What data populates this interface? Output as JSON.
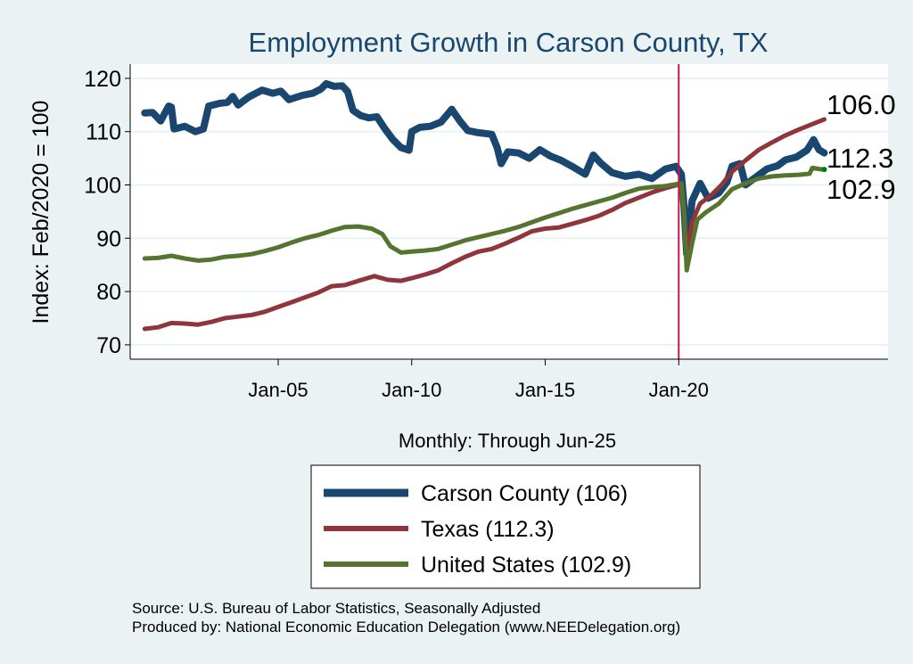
{
  "chart_data": {
    "type": "line",
    "title": "Employment Growth in Carson  County, TX",
    "xlabel": "Monthly: Through Jun-25",
    "ylabel": "Index: Feb/2020 = 100",
    "ylim": [
      68,
      123
    ],
    "xlim": [
      1999.5,
      2028.0
    ],
    "yticks": [
      70,
      80,
      90,
      100,
      110,
      120
    ],
    "xticks": [
      {
        "value": 2005,
        "label": "Jan-05"
      },
      {
        "value": 2010,
        "label": "Jan-10"
      },
      {
        "value": 2015,
        "label": "Jan-15"
      },
      {
        "value": 2020,
        "label": "Jan-20"
      }
    ],
    "grid": true,
    "reference_line_x": 2020.0,
    "legend_placement": "bottom",
    "series": [
      {
        "name": "Carson  County (106)",
        "color": "#1a476f",
        "end_label": "106.0",
        "points": [
          [
            2000,
            113.5
          ],
          [
            2000.3,
            113.6
          ],
          [
            2000.6,
            112
          ],
          [
            2000.9,
            114.8
          ],
          [
            2001.0,
            114.6
          ],
          [
            2001.1,
            110.5
          ],
          [
            2001.5,
            111
          ],
          [
            2001.9,
            110
          ],
          [
            2002.2,
            110.5
          ],
          [
            2002.4,
            114.8
          ],
          [
            2002.8,
            115.3
          ],
          [
            2003.1,
            115.5
          ],
          [
            2003.3,
            116.6
          ],
          [
            2003.5,
            115
          ],
          [
            2003.9,
            116.5
          ],
          [
            2004.4,
            117.8
          ],
          [
            2004.8,
            117.2
          ],
          [
            2005.1,
            117.6
          ],
          [
            2005.4,
            116
          ],
          [
            2005.9,
            116.8
          ],
          [
            2006.3,
            117.2
          ],
          [
            2006.6,
            118
          ],
          [
            2006.8,
            119
          ],
          [
            2007.1,
            118.5
          ],
          [
            2007.4,
            118.6
          ],
          [
            2007.6,
            117.5
          ],
          [
            2007.8,
            114
          ],
          [
            2008.1,
            113
          ],
          [
            2008.4,
            112.6
          ],
          [
            2008.7,
            112.8
          ],
          [
            2009.0,
            110.5
          ],
          [
            2009.3,
            108.5
          ],
          [
            2009.6,
            107
          ],
          [
            2009.9,
            106.5
          ],
          [
            2010.0,
            110
          ],
          [
            2010.3,
            110.8
          ],
          [
            2010.7,
            111
          ],
          [
            2011.1,
            111.8
          ],
          [
            2011.5,
            114.2
          ],
          [
            2011.8,
            112
          ],
          [
            2012.1,
            110.2
          ],
          [
            2012.5,
            109.8
          ],
          [
            2013.0,
            109.5
          ],
          [
            2013.2,
            107
          ],
          [
            2013.35,
            104
          ],
          [
            2013.6,
            106.2
          ],
          [
            2014.0,
            106
          ],
          [
            2014.4,
            105
          ],
          [
            2014.8,
            106.6
          ],
          [
            2015.2,
            105.4
          ],
          [
            2015.6,
            104.6
          ],
          [
            2016.0,
            103.5
          ],
          [
            2016.5,
            102
          ],
          [
            2016.8,
            105.6
          ],
          [
            2017.1,
            104
          ],
          [
            2017.5,
            102.3
          ],
          [
            2018.0,
            101.6
          ],
          [
            2018.5,
            102
          ],
          [
            2019.0,
            101.2
          ],
          [
            2019.5,
            103
          ],
          [
            2019.9,
            103.5
          ],
          [
            2020.1,
            102
          ],
          [
            2020.2,
            96
          ],
          [
            2020.3,
            87
          ],
          [
            2020.5,
            97
          ],
          [
            2020.8,
            100.3
          ],
          [
            2021.1,
            97.5
          ],
          [
            2021.5,
            98.5
          ],
          [
            2021.8,
            100.5
          ],
          [
            2022.0,
            103.5
          ],
          [
            2022.3,
            104
          ],
          [
            2022.5,
            100
          ],
          [
            2022.9,
            101.5
          ],
          [
            2023.3,
            103
          ],
          [
            2023.7,
            103.6
          ],
          [
            2024.0,
            104.7
          ],
          [
            2024.4,
            105.2
          ],
          [
            2024.8,
            106.5
          ],
          [
            2025.05,
            108.5
          ],
          [
            2025.25,
            106.6
          ],
          [
            2025.45,
            106
          ]
        ]
      },
      {
        "name": "Texas (112.3)",
        "color": "#90353b",
        "end_label": "112.3",
        "points": [
          [
            2000,
            73
          ],
          [
            2000.5,
            73.3
          ],
          [
            2001,
            74.1
          ],
          [
            2001.5,
            74
          ],
          [
            2002,
            73.8
          ],
          [
            2002.5,
            74.3
          ],
          [
            2003,
            75
          ],
          [
            2003.5,
            75.3
          ],
          [
            2004,
            75.6
          ],
          [
            2004.5,
            76.2
          ],
          [
            2005,
            77.1
          ],
          [
            2005.5,
            78
          ],
          [
            2006,
            78.9
          ],
          [
            2006.5,
            79.8
          ],
          [
            2007,
            81
          ],
          [
            2007.5,
            81.2
          ],
          [
            2008,
            82
          ],
          [
            2008.6,
            82.9
          ],
          [
            2009.1,
            82.2
          ],
          [
            2009.6,
            82
          ],
          [
            2010,
            82.5
          ],
          [
            2010.5,
            83.2
          ],
          [
            2011,
            84
          ],
          [
            2011.5,
            85.3
          ],
          [
            2012,
            86.5
          ],
          [
            2012.5,
            87.5
          ],
          [
            2013,
            88
          ],
          [
            2013.5,
            89
          ],
          [
            2014,
            90.1
          ],
          [
            2014.5,
            91.3
          ],
          [
            2015,
            91.8
          ],
          [
            2015.5,
            92
          ],
          [
            2016,
            92.7
          ],
          [
            2016.5,
            93.4
          ],
          [
            2017,
            94.2
          ],
          [
            2017.5,
            95.3
          ],
          [
            2018,
            96.6
          ],
          [
            2018.5,
            97.6
          ],
          [
            2019,
            98.6
          ],
          [
            2019.5,
            99.4
          ],
          [
            2020.1,
            100.2
          ],
          [
            2020.2,
            95
          ],
          [
            2020.3,
            87
          ],
          [
            2020.5,
            93
          ],
          [
            2020.8,
            96.5
          ],
          [
            2021.2,
            98
          ],
          [
            2021.6,
            100
          ],
          [
            2022.0,
            102.5
          ],
          [
            2022.5,
            104.6
          ],
          [
            2023.0,
            106.6
          ],
          [
            2023.5,
            108
          ],
          [
            2024.0,
            109.3
          ],
          [
            2024.5,
            110.4
          ],
          [
            2025.0,
            111.4
          ],
          [
            2025.45,
            112.3
          ]
        ]
      },
      {
        "name": "United States (102.9)",
        "color": "#55752f",
        "end_label": "102.9",
        "points": [
          [
            2000,
            86.2
          ],
          [
            2000.5,
            86.3
          ],
          [
            2001,
            86.7
          ],
          [
            2001.5,
            86.2
          ],
          [
            2002,
            85.8
          ],
          [
            2002.5,
            86
          ],
          [
            2003,
            86.5
          ],
          [
            2003.5,
            86.7
          ],
          [
            2004,
            87
          ],
          [
            2004.5,
            87.6
          ],
          [
            2005,
            88.3
          ],
          [
            2005.5,
            89.2
          ],
          [
            2006,
            90
          ],
          [
            2006.5,
            90.6
          ],
          [
            2007,
            91.4
          ],
          [
            2007.5,
            92.1
          ],
          [
            2008,
            92.2
          ],
          [
            2008.5,
            91.8
          ],
          [
            2008.9,
            90.8
          ],
          [
            2009.2,
            88.5
          ],
          [
            2009.6,
            87.3
          ],
          [
            2010,
            87.5
          ],
          [
            2010.5,
            87.7
          ],
          [
            2011,
            88
          ],
          [
            2011.5,
            88.8
          ],
          [
            2012,
            89.6
          ],
          [
            2012.5,
            90.2
          ],
          [
            2013,
            90.8
          ],
          [
            2013.5,
            91.4
          ],
          [
            2014,
            92.1
          ],
          [
            2014.5,
            93
          ],
          [
            2015,
            93.9
          ],
          [
            2015.5,
            94.7
          ],
          [
            2016,
            95.5
          ],
          [
            2016.5,
            96.2
          ],
          [
            2017,
            96.9
          ],
          [
            2017.5,
            97.6
          ],
          [
            2018,
            98.5
          ],
          [
            2018.5,
            99.3
          ],
          [
            2019,
            99.6
          ],
          [
            2019.5,
            99.8
          ],
          [
            2020.1,
            100.3
          ],
          [
            2020.2,
            95
          ],
          [
            2020.3,
            84
          ],
          [
            2020.5,
            89
          ],
          [
            2020.7,
            93.5
          ],
          [
            2021.0,
            94.8
          ],
          [
            2021.5,
            96.5
          ],
          [
            2022.0,
            99.2
          ],
          [
            2022.5,
            100.3
          ],
          [
            2023.0,
            101.2
          ],
          [
            2023.5,
            101.6
          ],
          [
            2024.0,
            101.8
          ],
          [
            2024.5,
            101.9
          ],
          [
            2024.9,
            102.1
          ],
          [
            2025.0,
            103.2
          ],
          [
            2025.25,
            103
          ],
          [
            2025.45,
            102.9
          ]
        ]
      }
    ],
    "notes": [
      "Source: U.S. Bureau of Labor Statistics, Seasonally Adjusted",
      "Produced by: National Economic Education Delegation (www.NEEDelegation.org)"
    ]
  }
}
